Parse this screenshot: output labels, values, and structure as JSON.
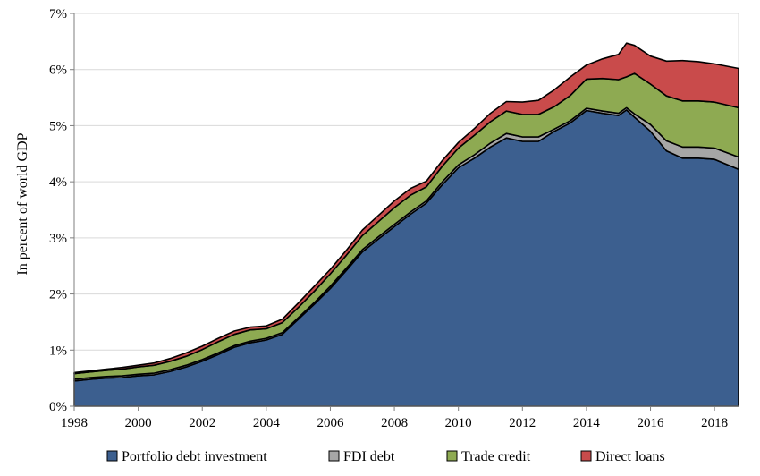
{
  "chart_data": {
    "type": "area",
    "stacked": true,
    "title": "",
    "xlabel": "",
    "ylabel": "In percent of world GDP",
    "xlim": [
      1998,
      2018.75
    ],
    "ylim": [
      0,
      7
    ],
    "x_ticks": [
      1998,
      2000,
      2002,
      2004,
      2006,
      2008,
      2010,
      2012,
      2014,
      2016,
      2018
    ],
    "x_tick_labels": [
      "1998",
      "2000",
      "2002",
      "2004",
      "2006",
      "2008",
      "2010",
      "2012",
      "2014",
      "2016",
      "2018"
    ],
    "y_ticks": [
      0,
      1,
      2,
      3,
      4,
      5,
      6,
      7
    ],
    "y_tick_labels": [
      "0%",
      "1%",
      "2%",
      "3%",
      "4%",
      "5%",
      "6%",
      "7%"
    ],
    "grid": "horizontal",
    "legend_position": "bottom",
    "x": [
      1998,
      1998.5,
      1999,
      1999.5,
      2000,
      2000.5,
      2001,
      2001.5,
      2002,
      2002.5,
      2003,
      2003.5,
      2004,
      2004.5,
      2005,
      2005.5,
      2006,
      2006.5,
      2007,
      2007.5,
      2008,
      2008.5,
      2009,
      2009.5,
      2010,
      2010.5,
      2011,
      2011.5,
      2012,
      2012.5,
      2013,
      2013.5,
      2014,
      2014.5,
      2015,
      2015.25,
      2015.5,
      2016,
      2016.5,
      2017,
      2017.5,
      2018,
      2018.75
    ],
    "series": [
      {
        "name": "Portfolio debt investment",
        "color": "#3c5f8f",
        "values": [
          0.45,
          0.48,
          0.5,
          0.51,
          0.54,
          0.56,
          0.62,
          0.7,
          0.8,
          0.92,
          1.05,
          1.13,
          1.18,
          1.28,
          1.55,
          1.82,
          2.1,
          2.42,
          2.75,
          2.98,
          3.2,
          3.42,
          3.62,
          3.95,
          4.25,
          4.42,
          4.62,
          4.78,
          4.72,
          4.72,
          4.9,
          5.05,
          5.27,
          5.22,
          5.18,
          5.28,
          5.15,
          4.9,
          4.55,
          4.42,
          4.42,
          4.4,
          4.22
        ]
      },
      {
        "name": "FDI debt",
        "color": "#a6a6a6",
        "values": [
          0.03,
          0.03,
          0.03,
          0.03,
          0.03,
          0.03,
          0.03,
          0.03,
          0.03,
          0.03,
          0.03,
          0.03,
          0.03,
          0.03,
          0.03,
          0.03,
          0.04,
          0.04,
          0.04,
          0.04,
          0.04,
          0.04,
          0.04,
          0.05,
          0.05,
          0.06,
          0.07,
          0.08,
          0.08,
          0.08,
          0.04,
          0.04,
          0.04,
          0.04,
          0.04,
          0.04,
          0.06,
          0.12,
          0.18,
          0.2,
          0.2,
          0.2,
          0.22
        ]
      },
      {
        "name": "Trade credit",
        "color": "#8eaa52",
        "values": [
          0.1,
          0.1,
          0.11,
          0.12,
          0.13,
          0.14,
          0.15,
          0.16,
          0.18,
          0.2,
          0.2,
          0.2,
          0.17,
          0.18,
          0.18,
          0.2,
          0.22,
          0.23,
          0.25,
          0.27,
          0.3,
          0.3,
          0.25,
          0.28,
          0.3,
          0.35,
          0.38,
          0.4,
          0.4,
          0.4,
          0.4,
          0.45,
          0.52,
          0.58,
          0.6,
          0.55,
          0.72,
          0.72,
          0.8,
          0.82,
          0.82,
          0.82,
          0.88
        ]
      },
      {
        "name": "Direct loans",
        "color": "#c94b4b",
        "values": [
          0.02,
          0.02,
          0.02,
          0.03,
          0.03,
          0.04,
          0.05,
          0.06,
          0.06,
          0.06,
          0.06,
          0.05,
          0.05,
          0.06,
          0.08,
          0.09,
          0.08,
          0.09,
          0.1,
          0.11,
          0.12,
          0.12,
          0.1,
          0.1,
          0.1,
          0.12,
          0.15,
          0.17,
          0.22,
          0.25,
          0.3,
          0.33,
          0.25,
          0.35,
          0.45,
          0.6,
          0.5,
          0.5,
          0.62,
          0.72,
          0.7,
          0.68,
          0.7
        ]
      }
    ]
  }
}
